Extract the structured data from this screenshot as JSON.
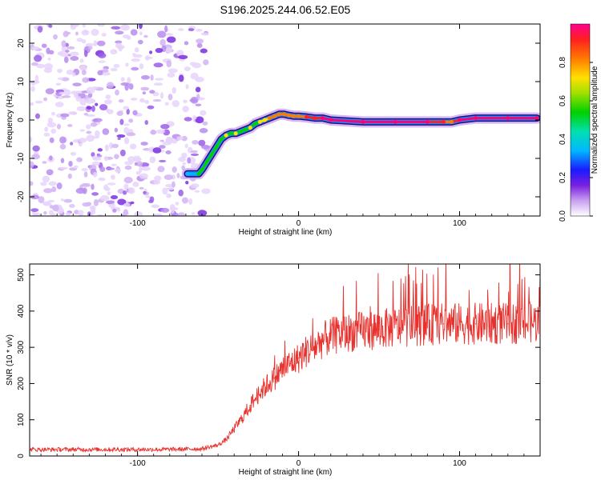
{
  "title": "S196.2025.244.06.52.E05",
  "colors": {
    "snr_line": "#e8302c",
    "noise_speckle": "#8a2be2",
    "axis": "#000000"
  },
  "chart_data": [
    {
      "type": "heatmap",
      "title": "S196.2025.244.06.52.E05",
      "xlabel": "Height of straight line (km)",
      "ylabel": "Frequency (Hz)",
      "xlim": [
        -167,
        150
      ],
      "ylim": [
        -25,
        25
      ],
      "xticks": [
        -100,
        0,
        100
      ],
      "xtick_labels": [
        "-100",
        "0",
        "100"
      ],
      "yticks": [
        -20,
        -10,
        0,
        10,
        20
      ],
      "ytick_labels": [
        "-20",
        "-10",
        "0",
        "10",
        "20"
      ],
      "colorbar": {
        "label": "Normalized spectral amplitude",
        "range": [
          0,
          1
        ],
        "ticks": [
          0.0,
          0.2,
          0.4,
          0.6,
          0.8
        ],
        "tick_labels": [
          "0.0",
          "0.2",
          "0.4",
          "0.6",
          "0.8"
        ]
      },
      "noise_region_x": [
        -167,
        -60
      ],
      "ridge": {
        "x": [
          -69,
          -62,
          -60,
          -57,
          -54,
          -51,
          -48,
          -45,
          -42,
          -39,
          -36,
          -33,
          -30,
          -27,
          -24,
          -21,
          -18,
          -15,
          -12,
          -9,
          -6,
          -3,
          0,
          5,
          10,
          15,
          20,
          40,
          60,
          80,
          90,
          95,
          100,
          110,
          130,
          148
        ],
        "y": [
          -14,
          -14,
          -13,
          -11,
          -9,
          -7,
          -5,
          -4,
          -3.5,
          -3.5,
          -3,
          -2.5,
          -2,
          -1,
          -0.5,
          0,
          0.5,
          1,
          1.5,
          1.5,
          1.2,
          1,
          1,
          0.8,
          0.5,
          0.5,
          0,
          -0.5,
          -0.5,
          -0.5,
          -0.5,
          -0.5,
          0,
          0.5,
          0.5,
          0.5
        ],
        "amplitude": [
          0.45,
          0.5,
          0.5,
          0.5,
          0.55,
          0.5,
          0.55,
          0.65,
          0.6,
          0.7,
          0.6,
          0.55,
          0.65,
          0.6,
          0.7,
          0.75,
          0.8,
          0.8,
          0.9,
          0.85,
          0.9,
          0.9,
          0.9,
          0.95,
          0.95,
          1.0,
          1.0,
          1.0,
          1.0,
          1.0,
          0.95,
          0.9,
          1.0,
          1.0,
          1.0,
          1.0
        ]
      }
    },
    {
      "type": "line",
      "xlabel": "Height of straight line (km)",
      "ylabel": "SNR (10 * v/v)",
      "xlim": [
        -167,
        150
      ],
      "ylim": [
        0,
        530
      ],
      "xticks": [
        -100,
        0,
        100
      ],
      "xtick_labels": [
        "-100",
        "0",
        "100"
      ],
      "yticks": [
        0,
        100,
        200,
        300,
        400,
        500
      ],
      "ytick_labels": [
        "0",
        "100",
        "200",
        "300",
        "400",
        "500"
      ],
      "series": [
        {
          "name": "SNR",
          "x": [
            -167,
            -140,
            -110,
            -80,
            -60,
            -50,
            -45,
            -40,
            -35,
            -30,
            -25,
            -20,
            -15,
            -10,
            -5,
            0,
            5,
            10,
            15,
            20,
            30,
            50,
            70,
            90,
            110,
            130,
            150
          ],
          "values": [
            18,
            18,
            18,
            18,
            20,
            30,
            45,
            75,
            105,
            140,
            170,
            195,
            215,
            240,
            255,
            270,
            290,
            300,
            320,
            330,
            340,
            350,
            360,
            365,
            365,
            365,
            370
          ]
        }
      ]
    }
  ]
}
